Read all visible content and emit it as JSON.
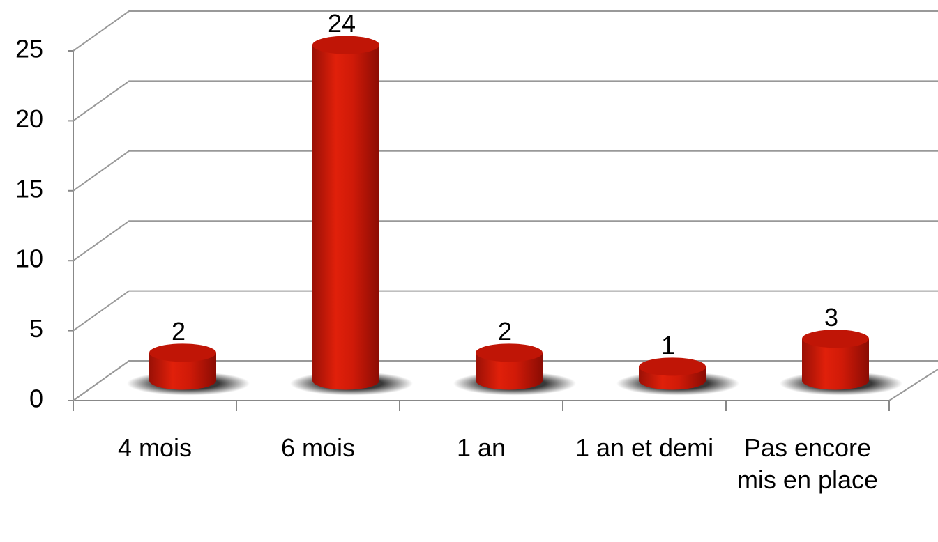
{
  "chart_data": {
    "type": "bar3d",
    "categories": [
      "4 mois",
      "6 mois",
      "1 an",
      "1 an et demi",
      "Pas encore mis en place"
    ],
    "values": [
      2,
      24,
      2,
      1,
      3
    ],
    "color": "#d81c08",
    "ylim": [
      0,
      25
    ],
    "yticks": [
      0,
      5,
      10,
      15,
      20,
      25
    ],
    "grid": true
  }
}
